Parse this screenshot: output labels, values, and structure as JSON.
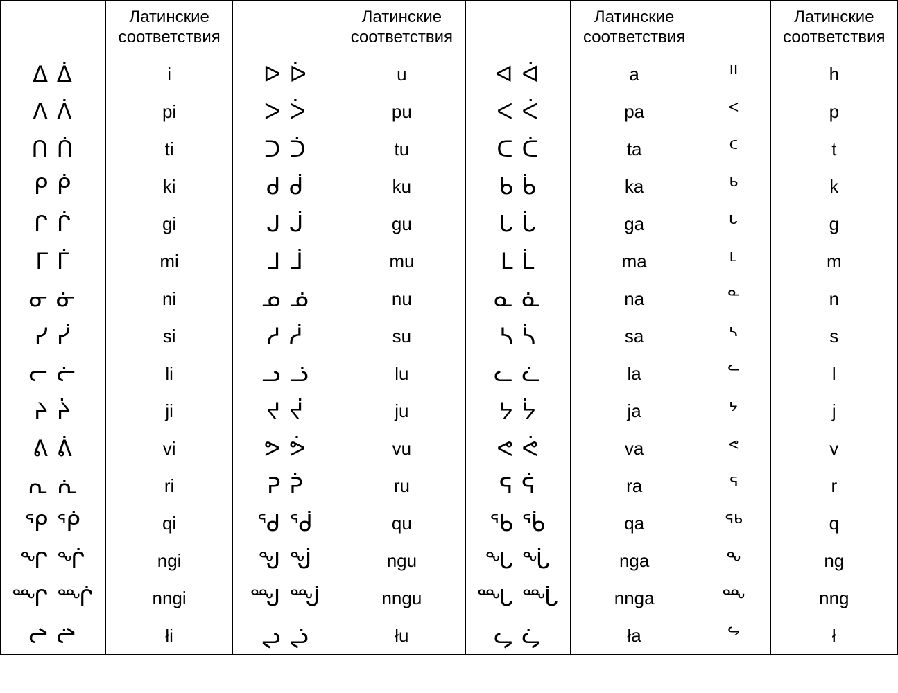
{
  "table": {
    "header_label": "Латинские соответствия",
    "background_color": "#ffffff",
    "border_color": "#000000",
    "text_color": "#000000",
    "header_fontsize": 24,
    "syllabic_fontsize": 32,
    "latin_fontsize": 26,
    "columns": [
      {
        "kind": "syllabics"
      },
      {
        "kind": "latin"
      },
      {
        "kind": "syllabics"
      },
      {
        "kind": "latin"
      },
      {
        "kind": "syllabics"
      },
      {
        "kind": "latin"
      },
      {
        "kind": "syllabics"
      },
      {
        "kind": "latin"
      }
    ],
    "rows": [
      {
        "c0": "ᐃ ᐄ",
        "c1": "i",
        "c2": "ᐅ ᐆ",
        "c3": "u",
        "c4": "ᐊ ᐋ",
        "c5": "a",
        "c6": "ᐦ",
        "c7": "h"
      },
      {
        "c0": "ᐱ ᐲ",
        "c1": "pi",
        "c2": "ᐳ ᐴ",
        "c3": "pu",
        "c4": "ᐸ ᐹ",
        "c5": "pa",
        "c6": "ᑉ",
        "c7": "p"
      },
      {
        "c0": "ᑎ ᑏ",
        "c1": "ti",
        "c2": "ᑐ ᑑ",
        "c3": "tu",
        "c4": "ᑕ ᑖ",
        "c5": "ta",
        "c6": "ᑦ",
        "c7": "t"
      },
      {
        "c0": "ᑭ ᑮ",
        "c1": "ki",
        "c2": "ᑯ ᑰ",
        "c3": "ku",
        "c4": "ᑲ ᑳ",
        "c5": "ka",
        "c6": "ᒃ",
        "c7": "k"
      },
      {
        "c0": "ᒋ ᒌ",
        "c1": "gi",
        "c2": "ᒍ ᒎ",
        "c3": "gu",
        "c4": "ᒐ ᒑ",
        "c5": "ga",
        "c6": "ᒡ",
        "c7": "g"
      },
      {
        "c0": "ᒥ ᒦ",
        "c1": "mi",
        "c2": "ᒧ ᒨ",
        "c3": "mu",
        "c4": "ᒪ ᒫ",
        "c5": "ma",
        "c6": "ᒻ",
        "c7": "m"
      },
      {
        "c0": "ᓂ ᓃ",
        "c1": "ni",
        "c2": "ᓄ ᓅ",
        "c3": "nu",
        "c4": "ᓇ ᓈ",
        "c5": "na",
        "c6": "ᓐ",
        "c7": "n"
      },
      {
        "c0": "ᓯ ᓰ",
        "c1": "si",
        "c2": "ᓱ ᓲ",
        "c3": "su",
        "c4": "ᓴ ᓵ",
        "c5": "sa",
        "c6": "ᔅ",
        "c7": "s"
      },
      {
        "c0": "ᓕ ᓖ",
        "c1": "li",
        "c2": "ᓗ ᓘ",
        "c3": "lu",
        "c4": "ᓚ ᓛ",
        "c5": "la",
        "c6": "ᓪ",
        "c7": "l"
      },
      {
        "c0": "ᔨ ᔩ",
        "c1": "ji",
        "c2": "ᔪ ᔫ",
        "c3": "ju",
        "c4": "ᔭ ᔮ",
        "c5": "ja",
        "c6": "ᔾ",
        "c7": "j"
      },
      {
        "c0": "ᕕ ᕖ",
        "c1": "vi",
        "c2": "ᕗ ᕘ",
        "c3": "vu",
        "c4": "ᕙ ᕚ",
        "c5": "va",
        "c6": "ᕝ",
        "c7": "v"
      },
      {
        "c0": "ᕆ ᕇ",
        "c1": "ri",
        "c2": "ᕈ ᕉ",
        "c3": "ru",
        "c4": "ᕋ ᕌ",
        "c5": "ra",
        "c6": "ᕐ",
        "c7": "r"
      },
      {
        "c0": "ᕿ ᖀ",
        "c1": "qi",
        "c2": "ᖁ ᖂ",
        "c3": "qu",
        "c4": "ᖃ ᖄ",
        "c5": "qa",
        "c6": "ᖅ",
        "c7": "q"
      },
      {
        "c0": "ᖏ ᖐ",
        "c1": "ngi",
        "c2": "ᖑ ᖒ",
        "c3": "ngu",
        "c4": "ᖓ ᖔ",
        "c5": "nga",
        "c6": "ᖕ",
        "c7": "ng"
      },
      {
        "c0": "ᙱ ᙲ",
        "c1": "nngi",
        "c2": "ᙳ ᙴ",
        "c3": "nngu",
        "c4": "ᙵ ᙶ",
        "c5": "nnga",
        "c6": "ᖖ",
        "c7": "nng"
      },
      {
        "c0": "ᖠ ᖡ",
        "c1": "łi",
        "c2": "ᖢ ᖣ",
        "c3": "łu",
        "c4": "ᖤ ᖥ",
        "c5": "ła",
        "c6": "ᖦ",
        "c7": "ł"
      }
    ]
  }
}
